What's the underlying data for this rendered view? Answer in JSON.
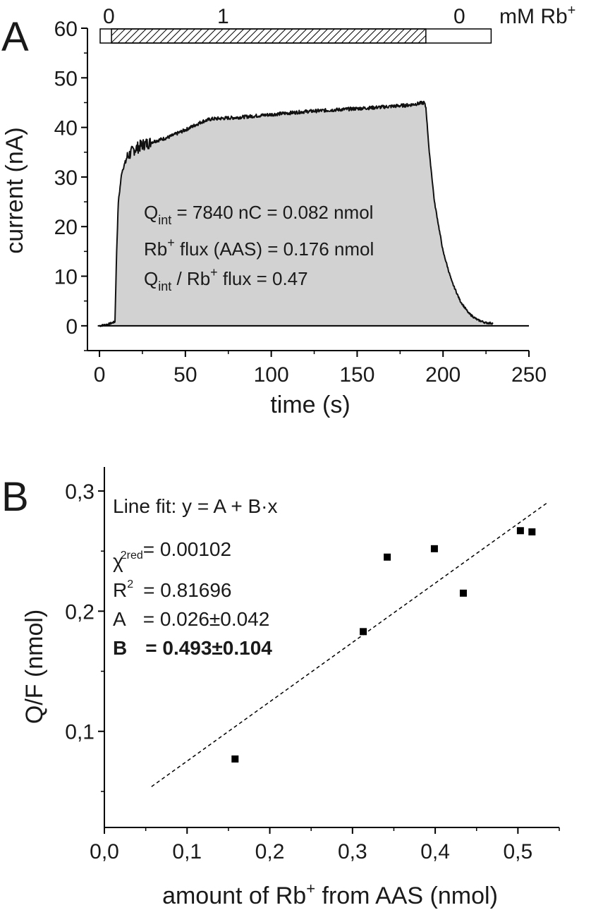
{
  "chart_data": [
    {
      "panel": "A",
      "type": "area",
      "xlabel": "time (s)",
      "ylabel": "current (nA)",
      "xlim": [
        -7,
        250
      ],
      "ylim": [
        -5,
        60
      ],
      "xticks": [
        0,
        50,
        100,
        150,
        200,
        250
      ],
      "yticks": [
        0,
        10,
        20,
        30,
        40,
        50,
        60
      ],
      "series": [
        {
          "name": "current",
          "x": [
            0,
            5,
            9,
            10,
            11,
            13,
            16,
            20,
            25,
            30,
            40,
            50,
            60,
            65,
            80,
            100,
            120,
            140,
            160,
            180,
            189,
            190,
            192,
            195,
            200,
            205,
            210,
            215,
            220,
            225,
            229
          ],
          "y": [
            0,
            0.3,
            0.8,
            15,
            25,
            31,
            34,
            35.5,
            36.5,
            37,
            38,
            39.5,
            41.2,
            41.7,
            42,
            42.6,
            43.2,
            43.6,
            44,
            44.5,
            45,
            44,
            35,
            25,
            15,
            9,
            5,
            2.5,
            1.2,
            0.6,
            0.5
          ]
        }
      ],
      "solution_bar": {
        "labels": [
          "0",
          "1",
          "0"
        ],
        "unit_label": "mM Rb",
        "unit_sup": "+",
        "segments": [
          {
            "from": -7,
            "to": 7,
            "concentration": "0"
          },
          {
            "from": 7,
            "to": 190,
            "concentration": "1"
          },
          {
            "from": 190,
            "to": 228,
            "concentration": "0"
          }
        ]
      },
      "annotations": {
        "line1_main": "Q",
        "line1_sub": "int",
        "line1_rest": " = 7840 nC = 0.082 nmol",
        "line2_main": "Rb",
        "line2_sup": "+",
        "line2_rest": " flux (AAS) = 0.176 nmol",
        "line3_main": "Q",
        "line3_sub": "int",
        "line3_mid": " / Rb",
        "line3_sup": "+",
        "line3_rest": " flux = 0.47"
      }
    },
    {
      "panel": "B",
      "type": "scatter",
      "xlabel_main": "amount of Rb",
      "xlabel_sup": "+",
      "xlabel_rest": " from AAS (nmol)",
      "ylabel": "Q/F (nmol)",
      "xlim": [
        0,
        0.55
      ],
      "ylim": [
        0.02,
        0.32
      ],
      "xticks": [
        "0,0",
        "0,1",
        "0,2",
        "0,3",
        "0,4",
        "0,5"
      ],
      "xtick_values": [
        0,
        0.1,
        0.2,
        0.3,
        0.4,
        0.5
      ],
      "yticks": [
        "0,1",
        "0,2",
        "0,3"
      ],
      "ytick_values": [
        0.1,
        0.2,
        0.3
      ],
      "points": [
        {
          "x": 0.158,
          "y": 0.077
        },
        {
          "x": 0.313,
          "y": 0.183
        },
        {
          "x": 0.342,
          "y": 0.245
        },
        {
          "x": 0.399,
          "y": 0.252
        },
        {
          "x": 0.434,
          "y": 0.215
        },
        {
          "x": 0.503,
          "y": 0.267
        },
        {
          "x": 0.517,
          "y": 0.266
        }
      ],
      "fit_line": {
        "x": [
          0.057,
          0.535
        ],
        "y": [
          0.054,
          0.29
        ]
      },
      "fit_text": {
        "title": "Line fit: y = A + B·x",
        "chi_sym": "χ",
        "chi_sup": "2",
        "chi_sub": "red",
        "chi_val": "= 0.00102",
        "r_main": "R",
        "r_sup": "2",
        "r_val": "= 0.81696",
        "a_label": "A",
        "a_val": "= 0.026±0.042",
        "b_label": "B",
        "b_val": "= 0.493±0.104"
      }
    }
  ],
  "panel_labels": {
    "a": "A",
    "b": "B"
  }
}
